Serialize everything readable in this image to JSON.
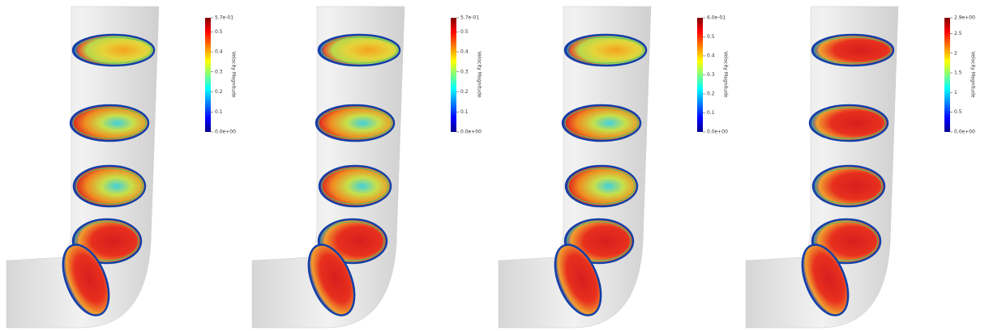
{
  "panels": [
    {
      "colorbar": {
        "title": "Velocity Magnitude",
        "ticks": [
          "5.7e-01",
          "0.5",
          "0.4",
          "0.3",
          "0.2",
          "0.1",
          "0.0e+00"
        ]
      }
    },
    {
      "colorbar": {
        "title": "Velocity Magnitude",
        "ticks": [
          "5.7e-01",
          "0.5",
          "0.4",
          "0.3",
          "0.2",
          "0.1",
          "0.0e+00"
        ]
      }
    },
    {
      "colorbar": {
        "title": "Velocity Magnitude",
        "ticks": [
          "6.0e-01",
          "0.5",
          "0.4",
          "0.3",
          "0.2",
          "0.1",
          "0.0e+00"
        ]
      }
    },
    {
      "colorbar": {
        "title": "Velocity Magnitude",
        "ticks": [
          "2.9e+00",
          "2.5",
          "2",
          "1.5",
          "1",
          "0.5",
          "0.0e+00"
        ]
      }
    }
  ]
}
